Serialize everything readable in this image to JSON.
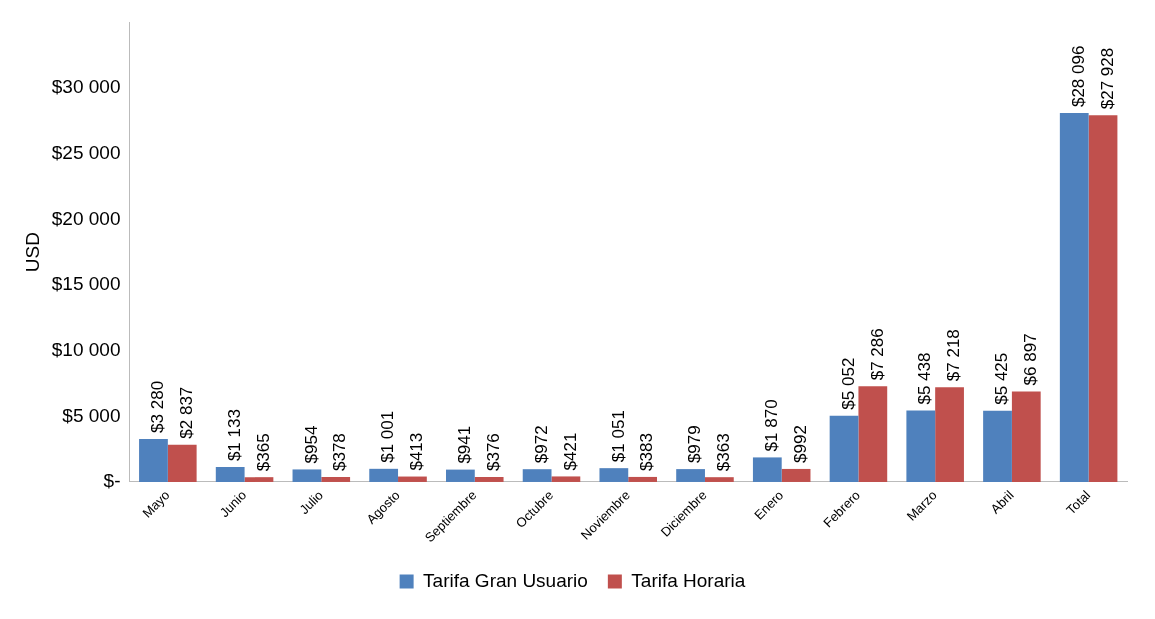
{
  "chart_data": {
    "type": "bar",
    "ylabel": "USD",
    "categories": [
      "Mayo",
      "Junio",
      "Julio",
      "Agosto",
      "Septiembre",
      "Octubre",
      "Noviembre",
      "Diciembre",
      "Enero",
      "Febrero",
      "Marzo",
      "Abril",
      "Total"
    ],
    "series": [
      {
        "name": "Tarifa Gran Usuario",
        "color": "#4f81bd",
        "values": [
          3280,
          1133,
          954,
          1001,
          941,
          972,
          1051,
          979,
          1870,
          5052,
          5438,
          5425,
          28096
        ],
        "value_labels": [
          "$3 280",
          "$1 133",
          "$954",
          "$1 001",
          "$941",
          "$972",
          "$1 051",
          "$979",
          "$1 870",
          "$5 052",
          "$5 438",
          "$5 425",
          "$28 096"
        ]
      },
      {
        "name": "Tarifa Horaria",
        "color": "#c0504d",
        "values": [
          2837,
          365,
          378,
          413,
          376,
          421,
          383,
          363,
          992,
          7286,
          7218,
          6897,
          27928
        ],
        "value_labels": [
          "$2 837",
          "$365",
          "$378",
          "$413",
          "$376",
          "$421",
          "$383",
          "$363",
          "$992",
          "$7 286",
          "$7 218",
          "$6 897",
          "$27 928"
        ]
      }
    ],
    "ylim": [
      0,
      35000
    ],
    "yticks": [
      {
        "value": 0,
        "label": "$-"
      },
      {
        "value": 5000,
        "label": "$5 000"
      },
      {
        "value": 10000,
        "label": "$10 000"
      },
      {
        "value": 15000,
        "label": "$15 000"
      },
      {
        "value": 20000,
        "label": "$20 000"
      },
      {
        "value": 25000,
        "label": "$25 000"
      },
      {
        "value": 30000,
        "label": "$30 000"
      }
    ],
    "grid": false,
    "legend": "bottom"
  }
}
